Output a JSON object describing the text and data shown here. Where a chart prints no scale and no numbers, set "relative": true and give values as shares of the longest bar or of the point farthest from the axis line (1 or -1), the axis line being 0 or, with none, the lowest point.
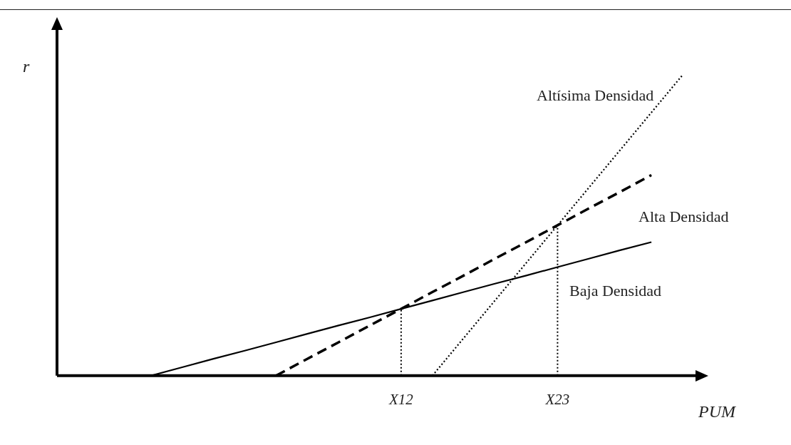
{
  "chart_data": {
    "type": "line",
    "relative": true,
    "xlabel": "PUM",
    "ylabel": "r",
    "grid": false,
    "legend": false,
    "marker": "none",
    "categories": [
      null,
      null,
      null,
      null,
      null,
      null,
      null,
      null,
      null,
      null,
      null,
      "X12",
      null,
      null,
      null,
      null,
      "X23",
      null,
      null,
      null,
      null
    ],
    "series": [
      {
        "name": "Baja Densidad",
        "color": "#000000",
        "line_style": "solid",
        "values": [
          null,
          null,
          null,
          0,
          0.028,
          0.056,
          0.083,
          0.111,
          0.139,
          0.167,
          0.194,
          0.222,
          0.25,
          0.278,
          0.306,
          0.333,
          0.361,
          0.389,
          0.417,
          0.444,
          null
        ]
      },
      {
        "name": "Alta Densidad",
        "color": "#000000",
        "line_style": "dashed",
        "values": [
          null,
          null,
          null,
          null,
          null,
          null,
          null,
          0,
          0.056,
          0.111,
          0.167,
          0.222,
          0.278,
          0.333,
          0.389,
          0.444,
          0.5,
          0.556,
          0.611,
          0.667,
          null
        ]
      },
      {
        "name": "Altísima Densidad",
        "color": "#000000",
        "line_style": "dotted",
        "values": [
          null,
          null,
          null,
          null,
          null,
          null,
          null,
          null,
          null,
          null,
          null,
          null,
          0,
          0.125,
          0.25,
          0.375,
          0.5,
          0.625,
          0.75,
          0.875,
          1
        ]
      }
    ],
    "ref_lines": [
      {
        "axis": "x",
        "value": "X12",
        "line_style": "dotted",
        "color": "#000000"
      },
      {
        "axis": "x",
        "value": "X23",
        "line_style": "dotted",
        "color": "#000000"
      }
    ]
  }
}
